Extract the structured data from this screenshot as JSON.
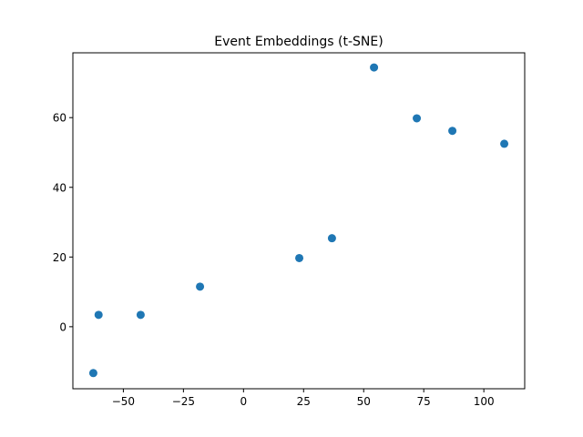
{
  "chart_data": {
    "type": "scatter",
    "title": "Event Embeddings (t-SNE)",
    "xlabel": "",
    "ylabel": "",
    "xlim": [
      -71,
      117
    ],
    "ylim": [
      -17.8,
      78.6
    ],
    "xticks": [
      -50,
      -25,
      0,
      25,
      50,
      75,
      100
    ],
    "xtick_labels": [
      "−50",
      "−25",
      "0",
      "25",
      "50",
      "75",
      "100"
    ],
    "yticks": [
      0,
      20,
      40,
      60
    ],
    "ytick_labels": [
      "0",
      "20",
      "40",
      "60"
    ],
    "grid": false,
    "legend": null,
    "marker_color": "#1f77b4",
    "points": [
      {
        "x": -62.5,
        "y": -13.3
      },
      {
        "x": -60.3,
        "y": 3.4
      },
      {
        "x": -42.8,
        "y": 3.4
      },
      {
        "x": -18.1,
        "y": 11.5
      },
      {
        "x": 23.2,
        "y": 19.7
      },
      {
        "x": 36.8,
        "y": 25.4
      },
      {
        "x": 54.3,
        "y": 74.4
      },
      {
        "x": 72.1,
        "y": 59.8
      },
      {
        "x": 86.9,
        "y": 56.2
      },
      {
        "x": 108.5,
        "y": 52.5
      }
    ]
  }
}
